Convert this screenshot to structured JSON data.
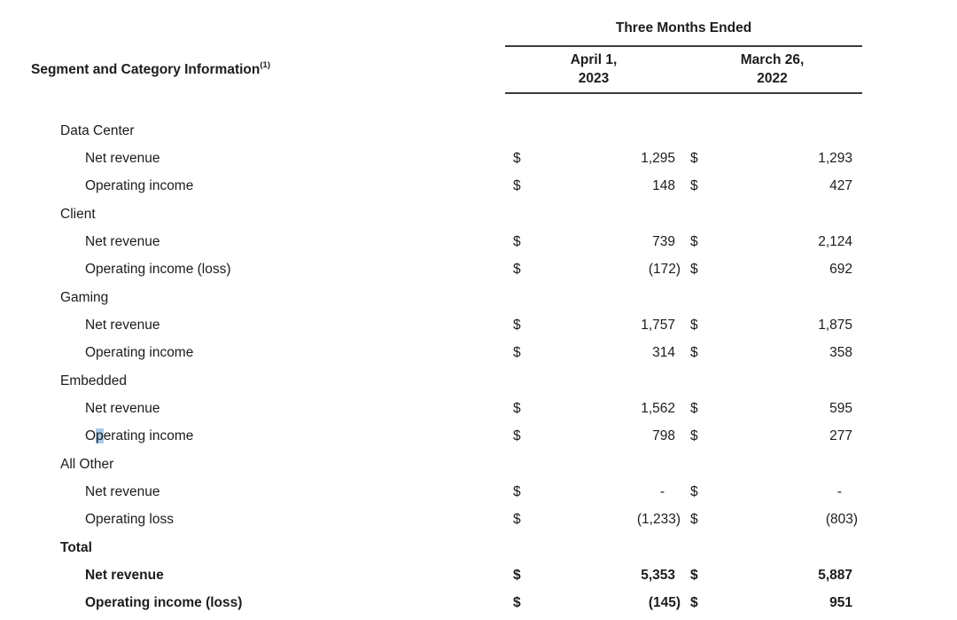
{
  "colors": {
    "text": "#1c1c1c",
    "rule": "#3c3c3c",
    "selection_highlight": "#a9cbea",
    "background": "#ffffff"
  },
  "table": {
    "period_group_header": "Three Months Ended",
    "left_header": {
      "title": "Segment and Category Information",
      "footnote": "(1)"
    },
    "columns": [
      {
        "line1": "April 1,",
        "line2": "2023"
      },
      {
        "line1": "March 26,",
        "line2": "2022"
      }
    ],
    "currency_symbol": "$",
    "rows": [
      {
        "label": "Data Center",
        "type": "section"
      },
      {
        "label": "Net revenue",
        "type": "item",
        "values": [
          "1,295",
          "1,293"
        ]
      },
      {
        "label": "Operating income",
        "type": "item",
        "values": [
          "148",
          "427"
        ]
      },
      {
        "label": "Client",
        "type": "section"
      },
      {
        "label": "Net revenue",
        "type": "item",
        "values": [
          "739",
          "2,124"
        ]
      },
      {
        "label": "Operating income (loss)",
        "type": "item",
        "values": [
          "(172)",
          "692"
        ]
      },
      {
        "label": "Gaming",
        "type": "section"
      },
      {
        "label": "Net revenue",
        "type": "item",
        "values": [
          "1,757",
          "1,875"
        ]
      },
      {
        "label": "Operating income",
        "type": "item",
        "values": [
          "314",
          "358"
        ]
      },
      {
        "label": "Embedded",
        "type": "section"
      },
      {
        "label": "Net revenue",
        "type": "item",
        "values": [
          "1,562",
          "595"
        ]
      },
      {
        "label": "Operating income",
        "type": "item",
        "values": [
          "798",
          "277"
        ],
        "highlight_char_index": 1
      },
      {
        "label": "All Other",
        "type": "section"
      },
      {
        "label": "Net revenue",
        "type": "item",
        "values": [
          "-",
          "-"
        ]
      },
      {
        "label": "Operating loss",
        "type": "item",
        "values": [
          "(1,233)",
          "(803)"
        ]
      },
      {
        "label": "Total",
        "type": "section",
        "bold": true
      },
      {
        "label": "Net revenue",
        "type": "item",
        "bold": true,
        "values": [
          "5,353",
          "5,887"
        ]
      },
      {
        "label": "Operating income (loss)",
        "type": "item",
        "bold": true,
        "values": [
          "(145)",
          "951"
        ]
      }
    ]
  }
}
